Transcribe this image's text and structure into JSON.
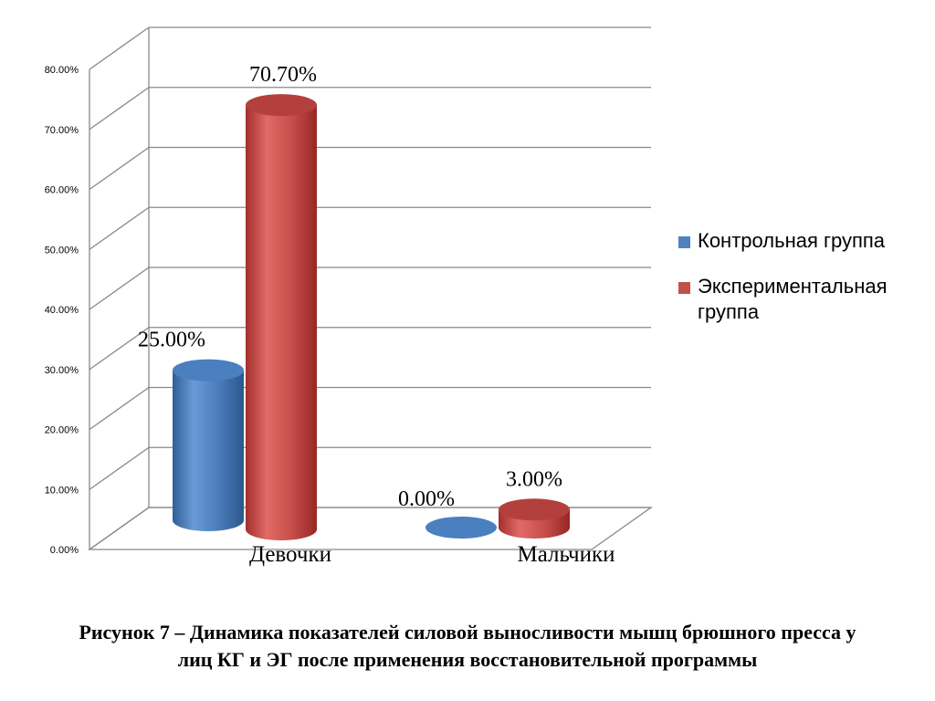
{
  "chart_data": {
    "type": "bar",
    "categories": [
      "Девочки",
      "Мальчики"
    ],
    "series": [
      {
        "name": "Контрольная группа",
        "values": [
          25.0,
          0.0
        ],
        "labels": [
          "25.00%",
          "0.00%"
        ],
        "color": "#4f81bd"
      },
      {
        "name": "Экспериментальная группа",
        "values": [
          70.7,
          3.0
        ],
        "labels": [
          "70.70%",
          "3.00%"
        ],
        "color": "#c0504d"
      }
    ],
    "ylim": [
      0,
      80
    ],
    "yticks": [
      "0.00%",
      "10.00%",
      "20.00%",
      "30.00%",
      "40.00%",
      "50.00%",
      "60.00%",
      "70.00%",
      "80.00%"
    ],
    "grid": true,
    "three_d": true,
    "legend_position": "right"
  },
  "legend": {
    "items": [
      {
        "label": "Контрольная группа",
        "color": "#4f81bd"
      },
      {
        "label": "Экспериментальная группа",
        "color": "#c0504d"
      }
    ]
  },
  "caption": {
    "line1": "Рисунок 7 – Динамика показателей силовой выносливости мышц брюшного пресса у",
    "line2": "лиц КГ и ЭГ после применения восстановительной программы"
  }
}
